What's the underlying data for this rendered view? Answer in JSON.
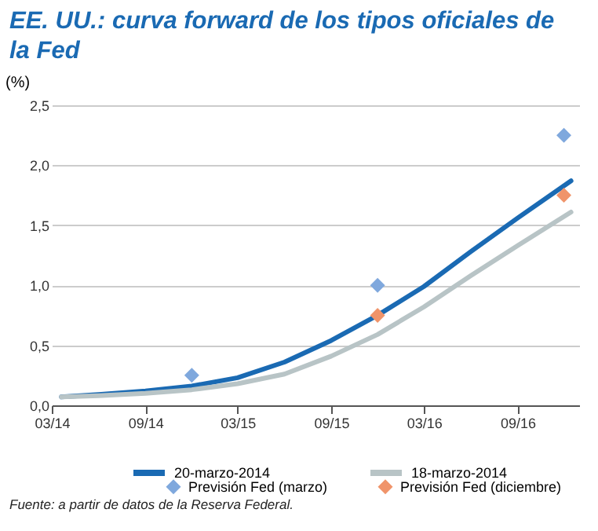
{
  "chart_data": {
    "type": "line",
    "title": "EE. UU.: curva forward de los tipos oficiales de la Fed",
    "ylabel": "(%)",
    "xlim": [
      "2014-03",
      "2016-12-31"
    ],
    "xticks": [
      {
        "value": "2014-03",
        "label": "03/14"
      },
      {
        "value": "2014-09",
        "label": "09/14"
      },
      {
        "value": "2015-03",
        "label": "03/15"
      },
      {
        "value": "2015-09",
        "label": "09/15"
      },
      {
        "value": "2016-03",
        "label": "03/16"
      },
      {
        "value": "2016-09",
        "label": "09/16"
      }
    ],
    "ylim": [
      0,
      2.5
    ],
    "yticks": [
      {
        "value": 0,
        "label": "0,0"
      },
      {
        "value": 0.5,
        "label": "0,5"
      },
      {
        "value": 1,
        "label": "1,0"
      },
      {
        "value": 1.5,
        "label": "1,5"
      },
      {
        "value": 2,
        "label": "2,0"
      },
      {
        "value": 2.5,
        "label": "2,5"
      }
    ],
    "grid": "y",
    "legend": "bottom",
    "line_style": "solid",
    "series": [
      {
        "name": "20-marzo-2014",
        "type": "line",
        "color": "#1a6ab3",
        "x": [
          "2014-03-20",
          "2014-06",
          "2014-09",
          "2014-12",
          "2015-03",
          "2015-06",
          "2015-09",
          "2015-12",
          "2016-03",
          "2016-06",
          "2016-09",
          "2016-12-15"
        ],
        "values": [
          0.07,
          0.09,
          0.12,
          0.16,
          0.23,
          0.36,
          0.54,
          0.75,
          0.99,
          1.28,
          1.56,
          1.87
        ]
      },
      {
        "name": "18-marzo-2014",
        "type": "line",
        "color": "#b8c4c6",
        "x": [
          "2014-03-20",
          "2014-06",
          "2014-09",
          "2014-12",
          "2015-03",
          "2015-06",
          "2015-09",
          "2015-12",
          "2016-03",
          "2016-06",
          "2016-09",
          "2016-12-15"
        ],
        "values": [
          0.07,
          0.08,
          0.1,
          0.13,
          0.18,
          0.26,
          0.41,
          0.59,
          0.82,
          1.08,
          1.33,
          1.61
        ]
      },
      {
        "name": "Previsión Fed (marzo)",
        "type": "scatter",
        "marker": "diamond",
        "color": "#7fa8dd",
        "x": [
          "2014-12",
          "2015-12",
          "2016-12"
        ],
        "values": [
          0.25,
          1.0,
          2.25
        ]
      },
      {
        "name": "Previsión Fed (diciembre)",
        "type": "scatter",
        "marker": "diamond",
        "color": "#f0946a",
        "x": [
          "2015-12",
          "2016-12"
        ],
        "values": [
          0.75,
          1.75
        ]
      }
    ],
    "annotations": [
      "Fuente: a partir de datos de la Reserva Federal."
    ]
  }
}
